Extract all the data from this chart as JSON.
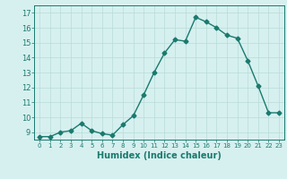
{
  "x": [
    0,
    1,
    2,
    3,
    4,
    5,
    6,
    7,
    8,
    9,
    10,
    11,
    12,
    13,
    14,
    15,
    16,
    17,
    18,
    19,
    20,
    21,
    22,
    23
  ],
  "y": [
    8.7,
    8.7,
    9.0,
    9.1,
    9.6,
    9.1,
    8.9,
    8.8,
    9.5,
    10.1,
    11.5,
    13.0,
    14.3,
    15.2,
    15.1,
    16.7,
    16.4,
    16.0,
    15.5,
    15.3,
    13.8,
    12.1,
    10.3,
    10.3
  ],
  "title": "",
  "xlabel": "Humidex (Indice chaleur)",
  "ylabel": "",
  "xlim": [
    -0.5,
    23.5
  ],
  "ylim": [
    8.5,
    17.5
  ],
  "yticks": [
    9,
    10,
    11,
    12,
    13,
    14,
    15,
    16,
    17
  ],
  "xticks": [
    0,
    1,
    2,
    3,
    4,
    5,
    6,
    7,
    8,
    9,
    10,
    11,
    12,
    13,
    14,
    15,
    16,
    17,
    18,
    19,
    20,
    21,
    22,
    23
  ],
  "line_color": "#1a7a6e",
  "bg_color": "#d6f0ef",
  "grid_color": "#b8dbd8",
  "marker": "D",
  "marker_size": 2.5,
  "line_width": 1.0
}
